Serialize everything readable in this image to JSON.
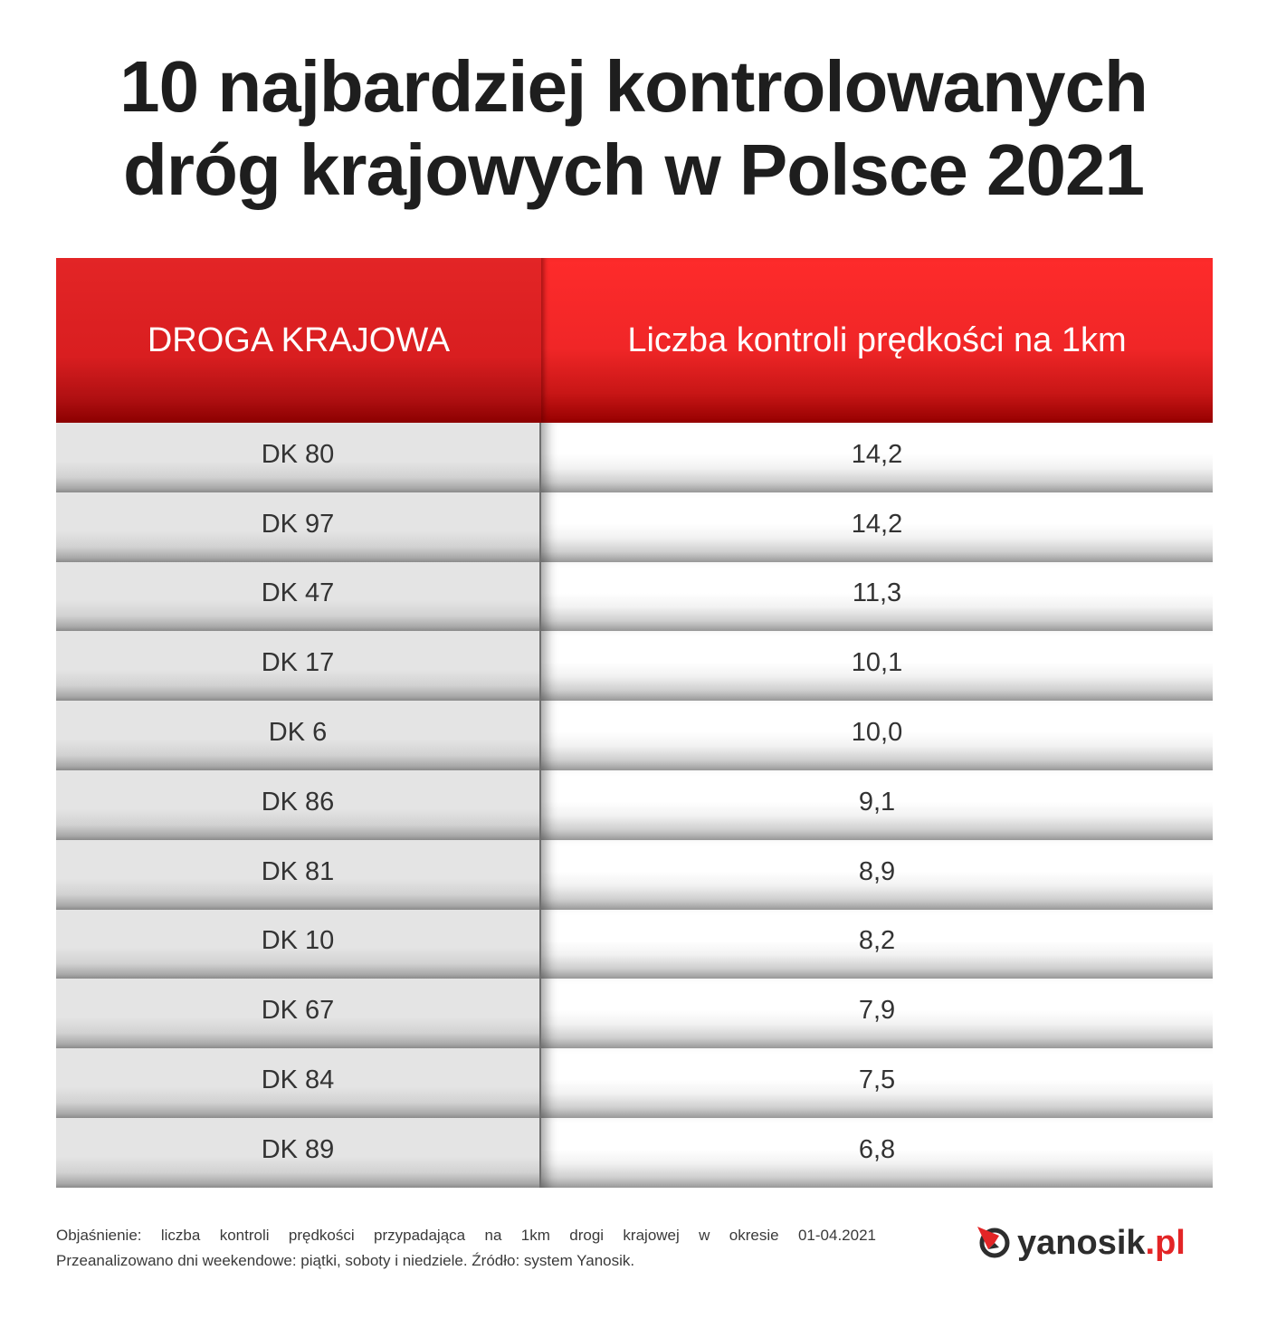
{
  "title": {
    "line1": "10 najbardziej kontrolowanych",
    "line2": "dróg krajowych w Polsce 2021"
  },
  "table": {
    "headers": [
      "DROGA KRAJOWA",
      "Liczba kontroli prędkości na 1km"
    ],
    "rows": [
      {
        "road": "DK 80",
        "value": "14,2"
      },
      {
        "road": "DK 97",
        "value": "14,2"
      },
      {
        "road": "DK 47",
        "value": "11,3"
      },
      {
        "road": "DK 17",
        "value": "10,1"
      },
      {
        "road": "DK 6",
        "value": "10,0"
      },
      {
        "road": "DK 86",
        "value": "9,1"
      },
      {
        "road": "DK 81",
        "value": "8,9"
      },
      {
        "road": "DK 10",
        "value": "8,2"
      },
      {
        "road": "DK 67",
        "value": "7,9"
      },
      {
        "road": "DK 84",
        "value": "7,5"
      },
      {
        "road": "DK 89",
        "value": "6,8"
      }
    ]
  },
  "footnote": {
    "line1": "Objaśnienie: liczba kontroli prędkości przypadająca na 1km drogi krajowej w okresie 01-04.2021",
    "line2": "Przeanalizowano dni weekendowe: piątki, soboty i niedziele. Źródło: system Yanosik."
  },
  "logo": {
    "name": "yanosik",
    "tld": ".pl",
    "icon": "compass-arrow-icon",
    "colors": {
      "text": "#2d2d2d",
      "accent": "#e32526"
    }
  },
  "colors": {
    "header_red": "#e32526",
    "header_dark_red": "#8c0000",
    "cell_gray": "#e4e4e4",
    "cell_white": "#ffffff",
    "text_dark": "#333333"
  },
  "chart_data": {
    "type": "table",
    "title": "10 najbardziej kontrolowanych dróg krajowych w Polsce 2021",
    "columns": [
      "DROGA KRAJOWA",
      "Liczba kontroli prędkości na 1km"
    ],
    "categories": [
      "DK 80",
      "DK 97",
      "DK 47",
      "DK 17",
      "DK 6",
      "DK 86",
      "DK 81",
      "DK 10",
      "DK 67",
      "DK 84",
      "DK 89"
    ],
    "values": [
      14.2,
      14.2,
      11.3,
      10.1,
      10.0,
      9.1,
      8.9,
      8.2,
      7.9,
      7.5,
      6.8
    ],
    "note": "Objaśnienie: liczba kontroli prędkości przypadająca na 1km drogi krajowej w okresie 01-04.2021. Przeanalizowano dni weekendowe: piątki, soboty i niedziele. Źródło: system Yanosik."
  }
}
